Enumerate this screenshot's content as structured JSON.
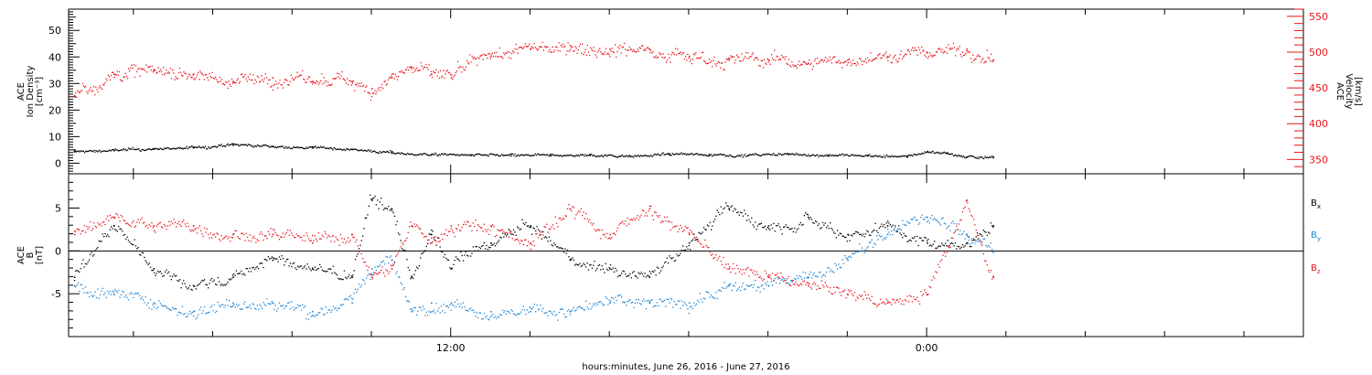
{
  "colors": {
    "density": "#000000",
    "velocity": "#e8141c",
    "bx": "#000000",
    "by": "#1a84d6",
    "bz": "#e8141c",
    "axes": "#000000"
  },
  "chart_data": [
    {
      "type": "scatter",
      "panel": "plasma",
      "ylabel_left_lines": [
        "ACE",
        "Ion Density",
        "[cm⁻³]"
      ],
      "ylabel_right_lines": [
        "ACE",
        "Velocity",
        "[km/s]"
      ],
      "x": {
        "range": [
          "2016-06-26 02:22",
          "2016-06-27 09:30"
        ],
        "ticks": [
          "12:00",
          "0:00"
        ],
        "data_end": "2016-06-27 01:40"
      },
      "ylim_left": [
        -4,
        58
      ],
      "yticks_left": [
        0,
        10,
        20,
        30,
        40,
        50
      ],
      "ylim_right": [
        330,
        560
      ],
      "yticks_right": [
        350,
        400,
        450,
        500,
        550
      ],
      "series": [
        {
          "key": "density",
          "axis": "left",
          "points": [
            [
              "2016-06-26 02:30",
              4.5
            ],
            [
              "2016-06-26 03:30",
              5.0
            ],
            [
              "2016-06-26 04:30",
              5.5
            ],
            [
              "2016-06-26 05:30",
              6.0
            ],
            [
              "2016-06-26 06:30",
              7.0
            ],
            [
              "2016-06-26 07:30",
              6.5
            ],
            [
              "2016-06-26 08:30",
              6.0
            ],
            [
              "2016-06-26 09:30",
              5.5
            ],
            [
              "2016-06-26 10:30",
              4.0
            ],
            [
              "2016-06-26 11:30",
              3.5
            ],
            [
              "2016-06-26 12:30",
              3.2
            ],
            [
              "2016-06-26 13:30",
              3.0
            ],
            [
              "2016-06-26 14:30",
              3.0
            ],
            [
              "2016-06-26 15:30",
              3.2
            ],
            [
              "2016-06-26 16:30",
              3.0
            ],
            [
              "2016-06-26 17:30",
              3.5
            ],
            [
              "2016-06-26 18:30",
              3.5
            ],
            [
              "2016-06-26 19:30",
              3.2
            ],
            [
              "2016-06-26 20:30",
              3.5
            ],
            [
              "2016-06-26 21:30",
              3.2
            ],
            [
              "2016-06-26 22:30",
              3.0
            ],
            [
              "2016-06-26 23:30",
              2.5
            ],
            [
              "2016-06-27 00:00",
              4.5
            ],
            [
              "2016-06-27 00:30",
              4.0
            ],
            [
              "2016-06-27 01:00",
              2.5
            ],
            [
              "2016-06-27 01:40",
              2.5
            ]
          ]
        },
        {
          "key": "velocity",
          "axis": "right",
          "points": [
            [
              "2016-06-26 02:30",
              440
            ],
            [
              "2016-06-26 03:30",
              470
            ],
            [
              "2016-06-26 04:30",
              475
            ],
            [
              "2016-06-26 05:30",
              470
            ],
            [
              "2016-06-26 06:30",
              460
            ],
            [
              "2016-06-26 07:30",
              465
            ],
            [
              "2016-06-26 08:30",
              460
            ],
            [
              "2016-06-26 09:30",
              460
            ],
            [
              "2016-06-26 10:00",
              450
            ],
            [
              "2016-06-26 10:30",
              465
            ],
            [
              "2016-06-26 11:00",
              480
            ],
            [
              "2016-06-26 11:30",
              470
            ],
            [
              "2016-06-26 12:00",
              465
            ],
            [
              "2016-06-26 13:00",
              495
            ],
            [
              "2016-06-26 14:00",
              505
            ],
            [
              "2016-06-26 15:00",
              510
            ],
            [
              "2016-06-26 16:00",
              505
            ],
            [
              "2016-06-26 17:00",
              505
            ],
            [
              "2016-06-26 18:00",
              495
            ],
            [
              "2016-06-26 19:00",
              490
            ],
            [
              "2016-06-26 20:00",
              490
            ],
            [
              "2016-06-26 21:00",
              485
            ],
            [
              "2016-06-26 22:00",
              490
            ],
            [
              "2016-06-26 23:00",
              495
            ],
            [
              "2016-06-27 00:00",
              500
            ],
            [
              "2016-06-27 01:00",
              505
            ],
            [
              "2016-06-27 01:40",
              490
            ]
          ]
        }
      ]
    },
    {
      "type": "scatter",
      "panel": "imf",
      "ylabel_left_lines": [
        "ACE",
        "B",
        "[nT]"
      ],
      "x": {
        "range": [
          "2016-06-26 02:22",
          "2016-06-27 09:30"
        ],
        "ticks": [
          "12:00",
          "0:00"
        ],
        "data_end": "2016-06-27 01:40"
      },
      "ylim_left": [
        -10,
        9
      ],
      "yticks_left": [
        -5,
        0,
        5
      ],
      "zero_line": true,
      "legend_position": "right",
      "legend_lines": [
        {
          "key": "bx",
          "label": "B",
          "sub": "x"
        },
        {
          "key": "by",
          "label": "B",
          "sub": "y"
        },
        {
          "key": "bz",
          "label": "B",
          "sub": "z"
        }
      ],
      "series": [
        {
          "key": "bx",
          "points": [
            [
              "2016-06-26 02:30",
              -3
            ],
            [
              "2016-06-26 03:30",
              3
            ],
            [
              "2016-06-26 04:30",
              -2
            ],
            [
              "2016-06-26 05:30",
              -4
            ],
            [
              "2016-06-26 06:30",
              -3
            ],
            [
              "2016-06-26 07:30",
              -1
            ],
            [
              "2016-06-26 08:30",
              -2
            ],
            [
              "2016-06-26 09:30",
              -3
            ],
            [
              "2016-06-26 10:00",
              6
            ],
            [
              "2016-06-26 10:30",
              5
            ],
            [
              "2016-06-26 11:00",
              -3
            ],
            [
              "2016-06-26 11:30",
              2
            ],
            [
              "2016-06-26 12:00",
              -2
            ],
            [
              "2016-06-26 13:00",
              1
            ],
            [
              "2016-06-26 14:00",
              3
            ],
            [
              "2016-06-26 15:00",
              -1
            ],
            [
              "2016-06-26 16:00",
              -2
            ],
            [
              "2016-06-26 17:00",
              -3
            ],
            [
              "2016-06-26 18:00",
              1
            ],
            [
              "2016-06-26 19:00",
              5
            ],
            [
              "2016-06-26 20:00",
              3
            ],
            [
              "2016-06-26 21:00",
              4
            ],
            [
              "2016-06-26 22:00",
              2
            ],
            [
              "2016-06-26 23:00",
              3
            ],
            [
              "2016-06-27 00:00",
              1
            ],
            [
              "2016-06-27 01:00",
              1
            ],
            [
              "2016-06-27 01:40",
              3
            ]
          ]
        },
        {
          "key": "by",
          "points": [
            [
              "2016-06-26 02:30",
              -4
            ],
            [
              "2016-06-26 03:30",
              -5
            ],
            [
              "2016-06-26 04:30",
              -6
            ],
            [
              "2016-06-26 05:30",
              -7
            ],
            [
              "2016-06-26 06:30",
              -6
            ],
            [
              "2016-06-26 07:30",
              -6
            ],
            [
              "2016-06-26 08:30",
              -7
            ],
            [
              "2016-06-26 09:30",
              -6
            ],
            [
              "2016-06-26 10:00",
              -2
            ],
            [
              "2016-06-26 10:30",
              -1
            ],
            [
              "2016-06-26 11:00",
              -7
            ],
            [
              "2016-06-26 11:30",
              -6
            ],
            [
              "2016-06-26 12:00",
              -6
            ],
            [
              "2016-06-26 13:00",
              -7
            ],
            [
              "2016-06-26 14:00",
              -7
            ],
            [
              "2016-06-26 15:00",
              -7
            ],
            [
              "2016-06-26 16:00",
              -6
            ],
            [
              "2016-06-26 17:00",
              -6
            ],
            [
              "2016-06-26 18:00",
              -6
            ],
            [
              "2016-06-26 19:00",
              -4
            ],
            [
              "2016-06-26 20:00",
              -4
            ],
            [
              "2016-06-26 21:00",
              -3
            ],
            [
              "2016-06-26 22:00",
              -1
            ],
            [
              "2016-06-26 23:00",
              2
            ],
            [
              "2016-06-27 00:00",
              4
            ],
            [
              "2016-06-27 01:00",
              2
            ],
            [
              "2016-06-27 01:40",
              0
            ]
          ]
        },
        {
          "key": "bz",
          "points": [
            [
              "2016-06-26 02:30",
              2
            ],
            [
              "2016-06-26 03:30",
              4
            ],
            [
              "2016-06-26 04:30",
              3
            ],
            [
              "2016-06-26 05:30",
              3
            ],
            [
              "2016-06-26 06:30",
              2
            ],
            [
              "2016-06-26 07:30",
              2
            ],
            [
              "2016-06-26 08:30",
              1
            ],
            [
              "2016-06-26 09:30",
              2
            ],
            [
              "2016-06-26 10:00",
              -3
            ],
            [
              "2016-06-26 10:30",
              -2
            ],
            [
              "2016-06-26 11:00",
              3
            ],
            [
              "2016-06-26 11:30",
              1
            ],
            [
              "2016-06-26 12:00",
              3
            ],
            [
              "2016-06-26 13:00",
              3
            ],
            [
              "2016-06-26 14:00",
              1
            ],
            [
              "2016-06-26 15:00",
              5
            ],
            [
              "2016-06-26 16:00",
              2
            ],
            [
              "2016-06-26 17:00",
              5
            ],
            [
              "2016-06-26 18:00",
              2
            ],
            [
              "2016-06-26 19:00",
              -2
            ],
            [
              "2016-06-26 20:00",
              -3
            ],
            [
              "2016-06-26 21:00",
              -4
            ],
            [
              "2016-06-26 22:00",
              -5
            ],
            [
              "2016-06-26 23:00",
              -6
            ],
            [
              "2016-06-27 00:00",
              -5
            ],
            [
              "2016-06-27 01:00",
              6
            ],
            [
              "2016-06-27 01:40",
              -3
            ]
          ]
        }
      ]
    }
  ],
  "footer": {
    "xlabel": "hours:minutes, June 26, 2016 - June 27, 2016"
  }
}
